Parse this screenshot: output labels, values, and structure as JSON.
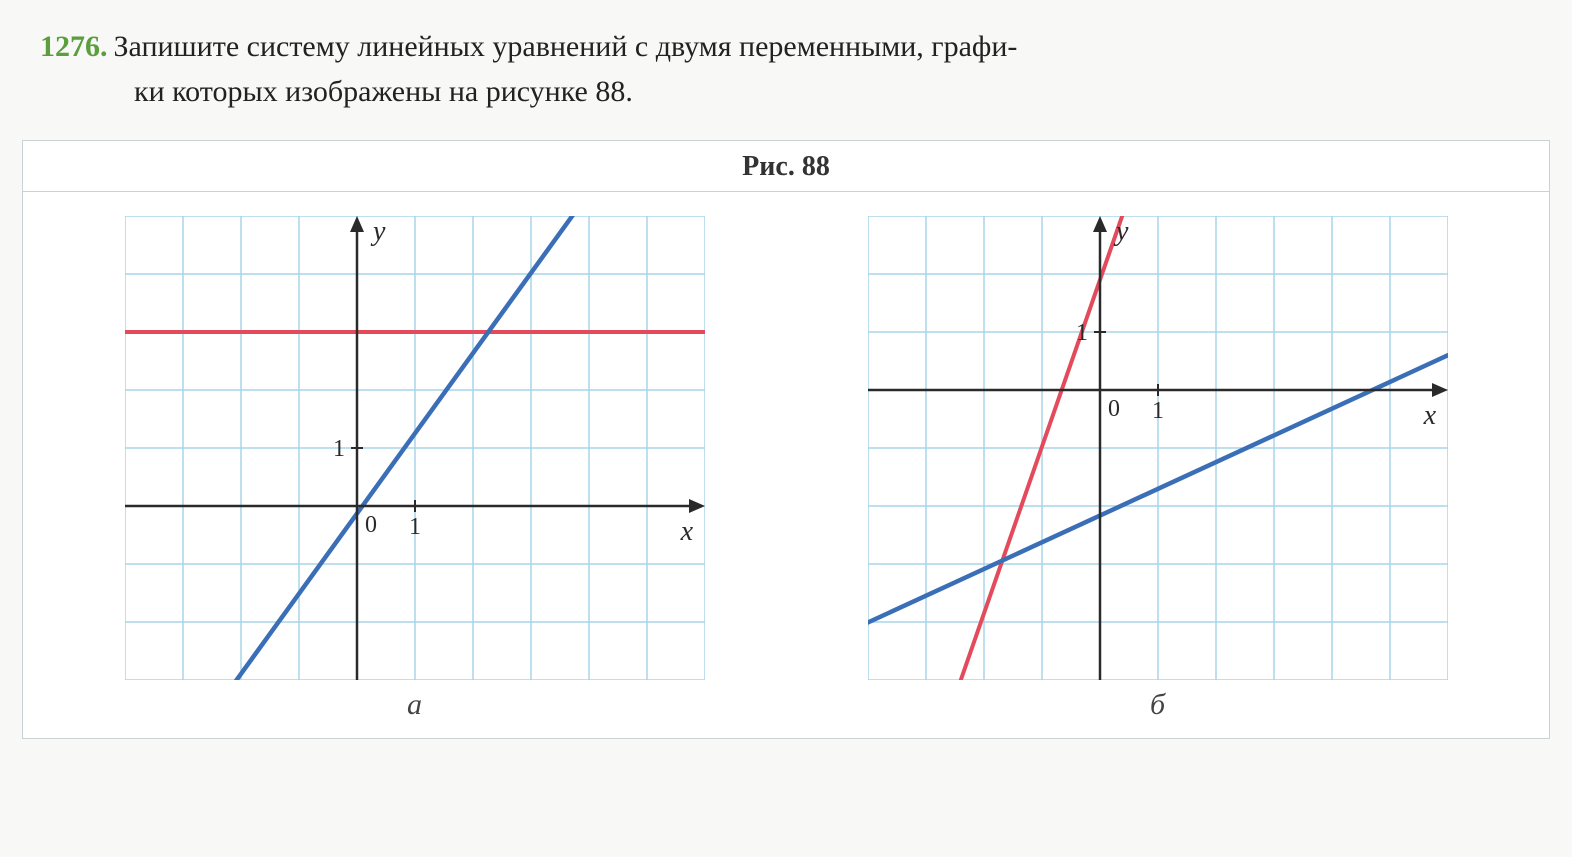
{
  "problem": {
    "number": "1276.",
    "line1": "Запишите систему линейных уравнений с двумя переменными, графи-",
    "line2": "ки которых изображены на рисунке 88."
  },
  "figure": {
    "title": "Рис. 88",
    "grid": {
      "cols": 10,
      "rows": 8,
      "cell": 58,
      "grid_color": "#a9d6e8",
      "bg_color": "#ffffff",
      "axis_color": "#2a2a2a",
      "axis_width": 2.5,
      "grid_width": 1.5,
      "tick_fontsize": 24,
      "label_fontsize": 28
    },
    "panels": [
      {
        "label": "а",
        "origin_col": 4,
        "origin_row": 5,
        "x_axis_label": "x",
        "y_axis_label": "y",
        "tick_x_label": "1",
        "tick_y_label": "1",
        "zero_label": "0",
        "lines": [
          {
            "color": "#e34a5c",
            "width": 4,
            "points": [
              [
                -4,
                3
              ],
              [
                6,
                3
              ]
            ]
          },
          {
            "color": "#3a6fb7",
            "width": 4.5,
            "points": [
              [
                -2.8,
                -4
              ],
              [
                4,
                5.4
              ]
            ]
          }
        ]
      },
      {
        "label": "б",
        "origin_col": 4,
        "origin_row": 3,
        "x_axis_label": "x",
        "y_axis_label": "y",
        "tick_x_label": "1",
        "tick_y_label": "1",
        "zero_label": "0",
        "lines": [
          {
            "color": "#e34a5c",
            "width": 4,
            "points": [
              [
                -2.4,
                -5
              ],
              [
                0.8,
                4.2
              ]
            ]
          },
          {
            "color": "#3a6fb7",
            "width": 4.5,
            "points": [
              [
                -4.2,
                -4.1
              ],
              [
                6,
                0.6
              ]
            ]
          }
        ]
      }
    ]
  }
}
